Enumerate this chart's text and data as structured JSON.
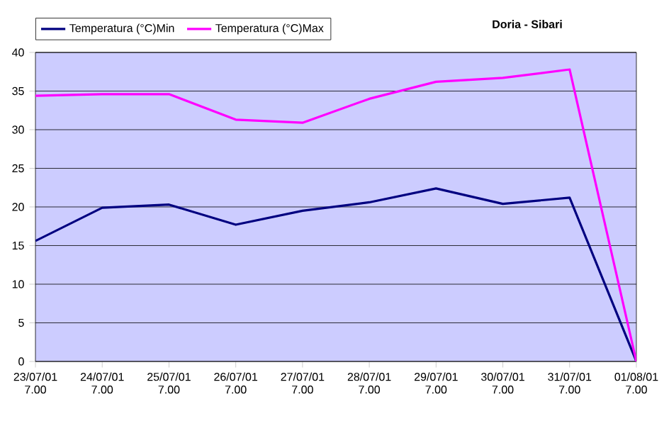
{
  "chart_data": {
    "type": "line",
    "title": "Doria - Sibari",
    "categories": [
      "23/07/01 7.00",
      "24/07/01 7.00",
      "25/07/01 7.00",
      "26/07/01 7.00",
      "27/07/01 7.00",
      "28/07/01 7.00",
      "29/07/01 7.00",
      "30/07/01 7.00",
      "31/07/01 7.00",
      "01/08/01 7.00"
    ],
    "series": [
      {
        "name": "Temperatura (°C)Min",
        "color": "#000080",
        "values": [
          15.6,
          19.9,
          20.3,
          17.7,
          19.5,
          20.6,
          22.4,
          20.4,
          21.2,
          0
        ]
      },
      {
        "name": "Temperatura (°C)Max",
        "color": "#ff00ff",
        "values": [
          34.4,
          34.6,
          34.6,
          31.3,
          30.9,
          34.0,
          36.2,
          36.7,
          37.8,
          0
        ]
      }
    ],
    "ylim": [
      0,
      40
    ],
    "yticks": [
      0,
      5,
      10,
      15,
      20,
      25,
      30,
      35,
      40
    ],
    "grid": "y",
    "legend": "top",
    "marker": "none",
    "line_style": "solid"
  }
}
